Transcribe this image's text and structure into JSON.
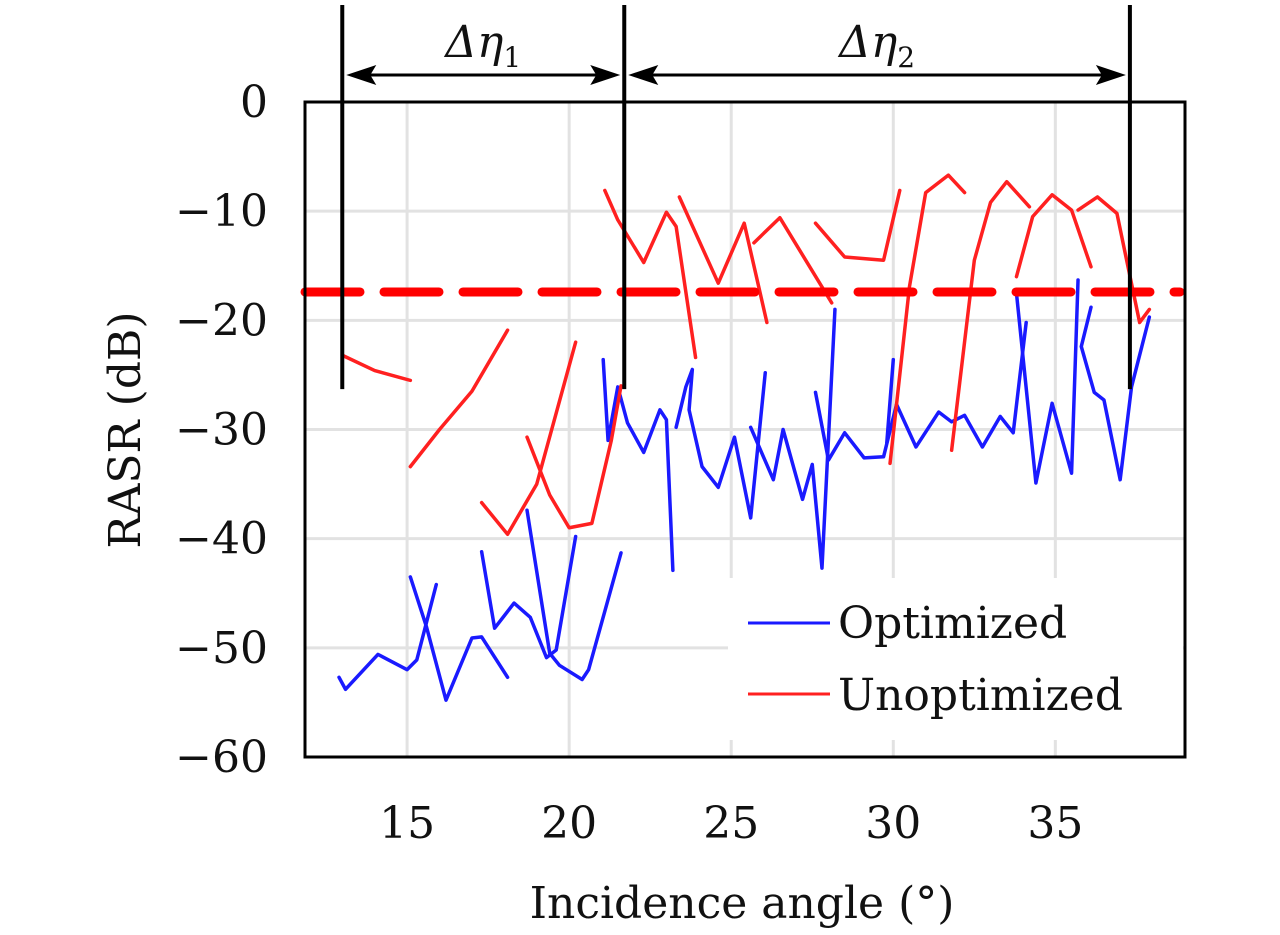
{
  "chart_data": {
    "type": "line",
    "xlabel": "Incidence angle (°)",
    "ylabel": "RASR (dB)",
    "xlim": [
      11.85,
      39.0
    ],
    "ylim": [
      -60,
      0
    ],
    "xticks": [
      15,
      20,
      25,
      30,
      35
    ],
    "yticks": [
      0,
      -10,
      -20,
      -30,
      -40,
      -50,
      -60
    ],
    "ytick_labels": [
      "0",
      "−10",
      "−20",
      "−30",
      "−40",
      "−50",
      "−60"
    ],
    "grid": true,
    "legend_position": "bottom-right",
    "series": [
      {
        "name": "Optimized",
        "color": "#1a1aff",
        "segments": [
          [
            [
              12.9,
              -52.7
            ],
            [
              13.1,
              -53.8
            ],
            [
              14.1,
              -50.6
            ],
            [
              15.0,
              -52.0
            ],
            [
              15.3,
              -51.1
            ],
            [
              15.9,
              -44.2
            ]
          ],
          [
            [
              15.1,
              -43.5
            ],
            [
              15.6,
              -48.1
            ],
            [
              16.2,
              -54.8
            ],
            [
              17.0,
              -49.1
            ],
            [
              17.3,
              -49.0
            ],
            [
              18.1,
              -52.7
            ]
          ],
          [
            [
              17.3,
              -41.2
            ],
            [
              17.7,
              -48.2
            ],
            [
              18.3,
              -45.9
            ],
            [
              18.8,
              -47.2
            ],
            [
              19.3,
              -50.9
            ],
            [
              19.6,
              -50.2
            ],
            [
              20.2,
              -39.8
            ]
          ],
          [
            [
              18.7,
              -37.4
            ],
            [
              19.4,
              -50.5
            ],
            [
              19.7,
              -51.6
            ],
            [
              20.4,
              -52.9
            ],
            [
              20.6,
              -52.0
            ],
            [
              21.6,
              -41.3
            ]
          ],
          [
            [
              21.05,
              -23.6
            ],
            [
              21.2,
              -31.0
            ],
            [
              21.5,
              -26.1
            ],
            [
              21.8,
              -29.4
            ],
            [
              22.3,
              -32.1
            ],
            [
              22.8,
              -28.2
            ],
            [
              23.0,
              -29.1
            ],
            [
              23.2,
              -42.9
            ]
          ],
          [
            [
              23.3,
              -29.8
            ],
            [
              23.6,
              -26.1
            ],
            [
              23.8,
              -24.5
            ],
            [
              23.7,
              -28.2
            ],
            [
              24.1,
              -33.4
            ],
            [
              24.6,
              -35.3
            ],
            [
              25.1,
              -30.7
            ],
            [
              25.6,
              -38.1
            ],
            [
              26.05,
              -24.8
            ]
          ],
          [
            [
              25.6,
              -29.8
            ],
            [
              26.3,
              -34.6
            ],
            [
              26.6,
              -30.0
            ],
            [
              27.2,
              -36.4
            ],
            [
              27.5,
              -33.2
            ],
            [
              27.8,
              -42.7
            ],
            [
              28.2,
              -19.0
            ]
          ],
          [
            [
              27.6,
              -26.6
            ],
            [
              28.0,
              -32.8
            ],
            [
              28.5,
              -30.3
            ],
            [
              29.1,
              -32.6
            ],
            [
              29.7,
              -32.5
            ],
            [
              30.1,
              -27.7
            ],
            [
              30.7,
              -31.6
            ],
            [
              31.4,
              -28.4
            ],
            [
              31.8,
              -29.3
            ],
            [
              32.2,
              -28.7
            ],
            [
              32.75,
              -31.6
            ],
            [
              33.3,
              -28.8
            ],
            [
              33.7,
              -30.3
            ],
            [
              34.1,
              -20.2
            ]
          ],
          [
            [
              29.8,
              -31.2
            ],
            [
              30.0,
              -23.6
            ]
          ],
          [
            [
              33.8,
              -17.5
            ],
            [
              34.4,
              -34.9
            ],
            [
              34.9,
              -27.6
            ],
            [
              35.5,
              -34.0
            ],
            [
              35.7,
              -16.3
            ]
          ],
          [
            [
              36.1,
              -18.8
            ],
            [
              35.8,
              -22.4
            ],
            [
              36.2,
              -26.6
            ],
            [
              36.5,
              -27.3
            ],
            [
              37.0,
              -34.6
            ],
            [
              37.35,
              -26.1
            ],
            [
              37.9,
              -19.7
            ]
          ]
        ]
      },
      {
        "name": "Unoptimized",
        "color": "#ff2020",
        "segments": [
          [
            [
              13.0,
              -23.2
            ],
            [
              14.0,
              -24.6
            ],
            [
              15.1,
              -25.5
            ]
          ],
          [
            [
              15.1,
              -33.4
            ],
            [
              16.0,
              -30.0
            ],
            [
              17.0,
              -26.5
            ],
            [
              18.1,
              -20.9
            ]
          ],
          [
            [
              17.3,
              -36.7
            ],
            [
              18.1,
              -39.6
            ],
            [
              19.0,
              -35.0
            ],
            [
              20.2,
              -22.0
            ]
          ],
          [
            [
              18.7,
              -30.7
            ],
            [
              19.4,
              -36.0
            ],
            [
              20.0,
              -39.0
            ],
            [
              20.7,
              -38.6
            ],
            [
              21.3,
              -31.0
            ],
            [
              21.6,
              -26.0
            ]
          ],
          [
            [
              21.1,
              -8.1
            ],
            [
              21.5,
              -10.8
            ],
            [
              22.3,
              -14.7
            ],
            [
              23.0,
              -10.1
            ],
            [
              23.3,
              -11.4
            ],
            [
              23.9,
              -23.4
            ]
          ],
          [
            [
              23.4,
              -8.7
            ],
            [
              24.6,
              -16.6
            ],
            [
              25.4,
              -11.1
            ],
            [
              26.1,
              -20.2
            ]
          ],
          [
            [
              25.7,
              -12.9
            ],
            [
              26.5,
              -10.6
            ],
            [
              27.3,
              -14.5
            ],
            [
              28.1,
              -18.4
            ]
          ],
          [
            [
              27.6,
              -11.1
            ],
            [
              28.5,
              -14.2
            ],
            [
              29.7,
              -14.5
            ],
            [
              30.2,
              -8.1
            ]
          ],
          [
            [
              29.9,
              -33.1
            ],
            [
              30.5,
              -16.9
            ],
            [
              31.0,
              -8.3
            ],
            [
              31.7,
              -6.7
            ],
            [
              32.2,
              -8.3
            ]
          ],
          [
            [
              31.8,
              -31.9
            ],
            [
              32.5,
              -14.5
            ],
            [
              33.0,
              -9.2
            ],
            [
              33.5,
              -7.3
            ],
            [
              34.2,
              -9.6
            ]
          ],
          [
            [
              33.8,
              -16.0
            ],
            [
              34.3,
              -10.5
            ],
            [
              34.9,
              -8.5
            ],
            [
              35.5,
              -9.9
            ],
            [
              36.1,
              -15.1
            ]
          ],
          [
            [
              35.7,
              -9.9
            ],
            [
              36.3,
              -8.7
            ],
            [
              36.9,
              -10.2
            ],
            [
              37.2,
              -14.5
            ],
            [
              37.6,
              -20.2
            ],
            [
              37.9,
              -19.0
            ]
          ]
        ]
      }
    ],
    "threshold": {
      "value": -17.4,
      "color": "#ff0000",
      "style": "dashed"
    },
    "annotations": {
      "boundaries": [
        13.0,
        21.7,
        37.3
      ],
      "intervals": [
        {
          "label": "Δη",
          "subscript": "1",
          "from": 13.0,
          "to": 21.7
        },
        {
          "label": "Δη",
          "subscript": "2",
          "from": 21.7,
          "to": 37.3
        }
      ]
    }
  }
}
